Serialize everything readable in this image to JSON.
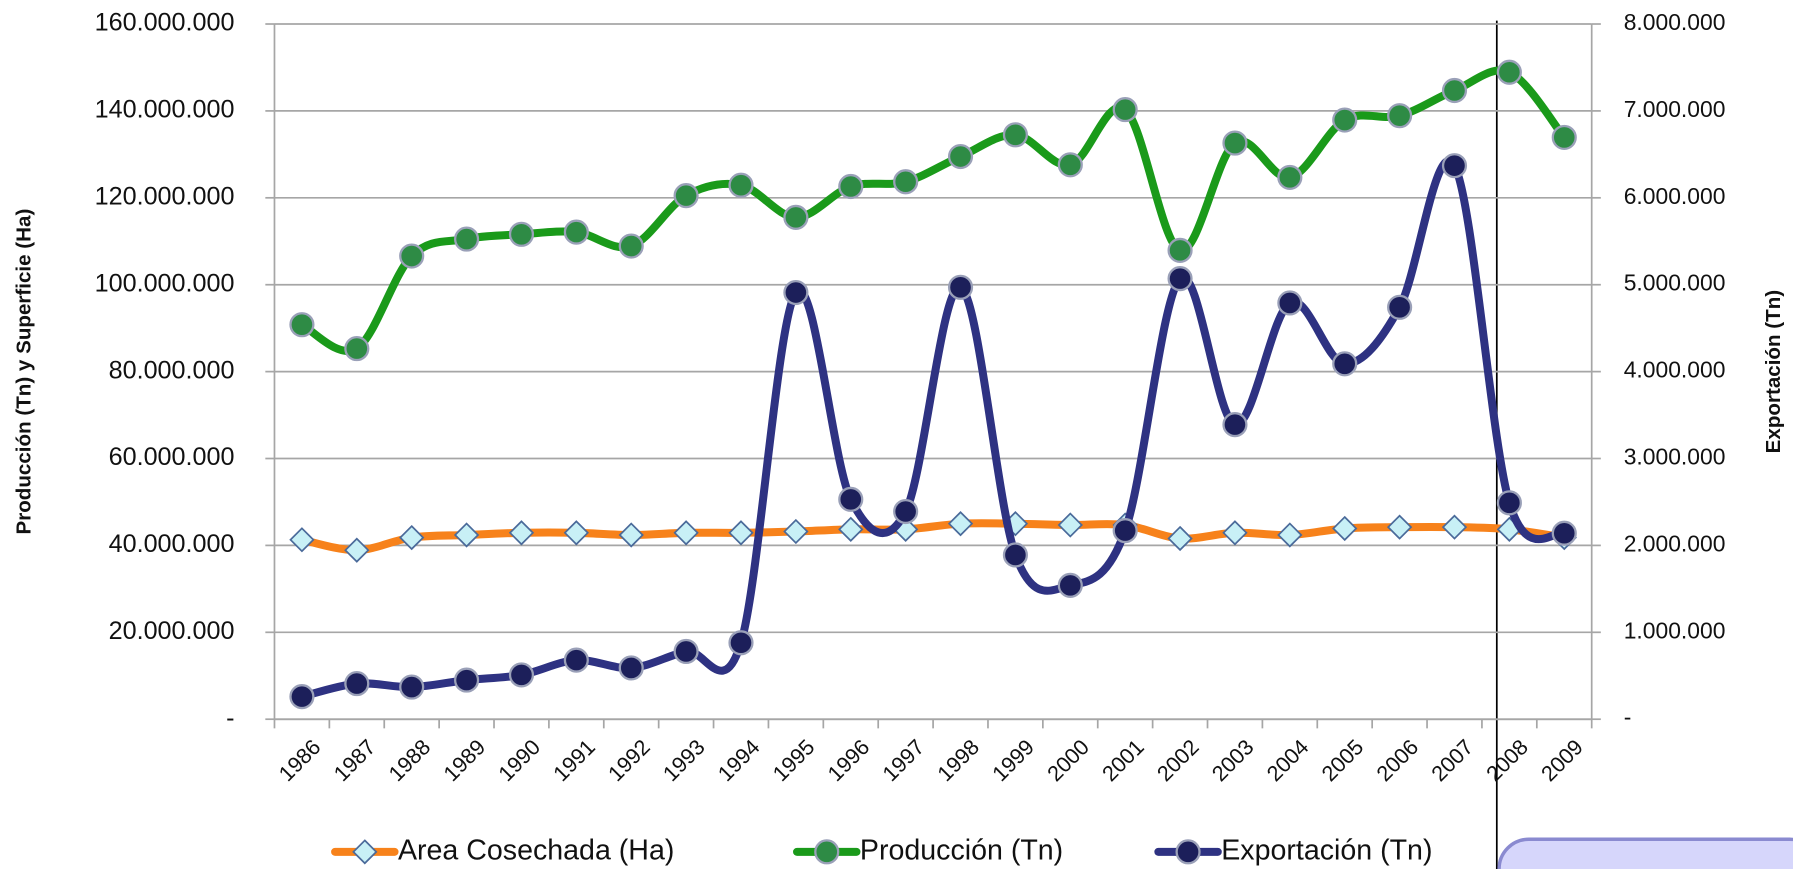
{
  "chart_data": {
    "type": "line",
    "categories": [
      "1986",
      "1987",
      "1988",
      "1989",
      "1990",
      "1991",
      "1992",
      "1993",
      "1994",
      "1995",
      "1996",
      "1997",
      "1998",
      "1999",
      "2000",
      "2001",
      "2002",
      "2003",
      "2004",
      "2005",
      "2006",
      "2007",
      "2008",
      "2009"
    ],
    "y_label": "Producción (Tn) y Superficie (Ha)",
    "y2_label": "Exportación (Tn)",
    "ylim": [
      0,
      160000000
    ],
    "yticks": [
      {
        "value": 0,
        "label": "-"
      },
      {
        "value": 20000000,
        "label": "20.000.000"
      },
      {
        "value": 40000000,
        "label": "40.000.000"
      },
      {
        "value": 60000000,
        "label": "60.000.000"
      },
      {
        "value": 80000000,
        "label": "80.000.000"
      },
      {
        "value": 100000000,
        "label": "100.000.000"
      },
      {
        "value": 120000000,
        "label": "120.000.000"
      },
      {
        "value": 140000000,
        "label": "140.000.000"
      },
      {
        "value": 160000000,
        "label": "160.000.000"
      }
    ],
    "y2lim": [
      0,
      8000000
    ],
    "y2ticks": [
      {
        "value": 0,
        "label": "-"
      },
      {
        "value": 1000000,
        "label": "1.000.000"
      },
      {
        "value": 2000000,
        "label": "2.000.000"
      },
      {
        "value": 3000000,
        "label": "3.000.000"
      },
      {
        "value": 4000000,
        "label": "4.000.000"
      },
      {
        "value": 5000000,
        "label": "5.000.000"
      },
      {
        "value": 6000000,
        "label": "6.000.000"
      },
      {
        "value": 7000000,
        "label": "7.000.000"
      },
      {
        "value": 8000000,
        "label": "8.000.000"
      }
    ],
    "grid": true,
    "legend": "bottom",
    "series": [
      {
        "name": "Area Cosechada (Ha)",
        "color": "#f7821b",
        "marker": "diamond",
        "marker_color": "#c8f0f6",
        "values": [
          41300000,
          38900000,
          41800000,
          42400000,
          42900000,
          42900000,
          42400000,
          42900000,
          42900000,
          43200000,
          43700000,
          43700000,
          45000000,
          45000000,
          44700000,
          44700000,
          41600000,
          42900000,
          42400000,
          43900000,
          44200000,
          44200000,
          43700000,
          41800000
        ]
      },
      {
        "name": "Producción (Tn)",
        "color": "#1a9a1a",
        "marker": "circle",
        "marker_color": "#2e8b45",
        "values": [
          90800000,
          85300000,
          106600000,
          110500000,
          111600000,
          112100000,
          108900000,
          120500000,
          122900000,
          115500000,
          122600000,
          123700000,
          129500000,
          134500000,
          127600000,
          140300000,
          107900000,
          132600000,
          124700000,
          137900000,
          138900000,
          144700000,
          148900000,
          133900000
        ]
      },
      {
        "name": "Exportación (Tn)",
        "color": "#2e3282",
        "marker": "circle",
        "marker_color": "#1c1f5a",
        "axis": "y2",
        "values": [
          260000,
          410000,
          370000,
          450000,
          510000,
          680000,
          590000,
          780000,
          880000,
          4910000,
          2530000,
          2390000,
          4970000,
          1890000,
          1540000,
          2170000,
          5070000,
          3390000,
          4790000,
          4090000,
          4740000,
          6370000,
          2490000,
          2140000
        ]
      }
    ]
  }
}
